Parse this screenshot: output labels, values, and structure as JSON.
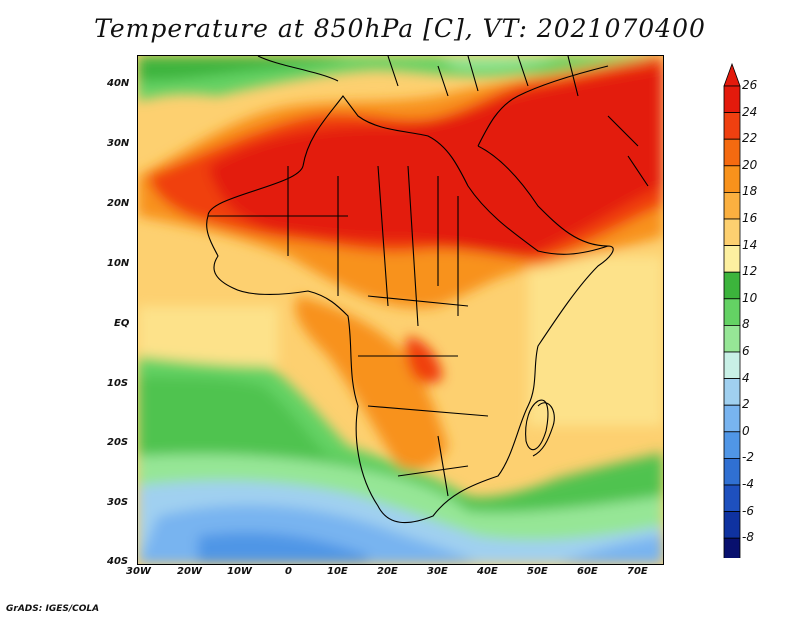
{
  "title": "Temperature at 850hPa [C], VT: 2021070400",
  "footer": "GrADS: IGES/COLA",
  "lon_labels": [
    "30W",
    "20W",
    "10W",
    "0",
    "10E",
    "20E",
    "30E",
    "40E",
    "50E",
    "60E",
    "70E"
  ],
  "lat_labels": [
    "40N",
    "30N",
    "20N",
    "10N",
    "EQ",
    "10S",
    "20S",
    "30S",
    "40S"
  ],
  "colorbar": {
    "labels": [
      "26",
      "24",
      "22",
      "20",
      "18",
      "16",
      "14",
      "12",
      "10",
      "8",
      "6",
      "4",
      "2",
      "0",
      "-2",
      "-4",
      "-6",
      "-8"
    ],
    "colors": [
      "#e31a0c",
      "#f04010",
      "#f56a10",
      "#f8921c",
      "#fbb040",
      "#fdd070",
      "#fdf0a0",
      "#3cb43c",
      "#64d264",
      "#96e696",
      "#c8f0e6",
      "#a0d0f0",
      "#78b4f0",
      "#5096e6",
      "#3070d2",
      "#1e50be",
      "#0f32a0",
      "#08106e"
    ],
    "over_color": "#e31a0c",
    "under_color": "#dcdcf5"
  }
}
